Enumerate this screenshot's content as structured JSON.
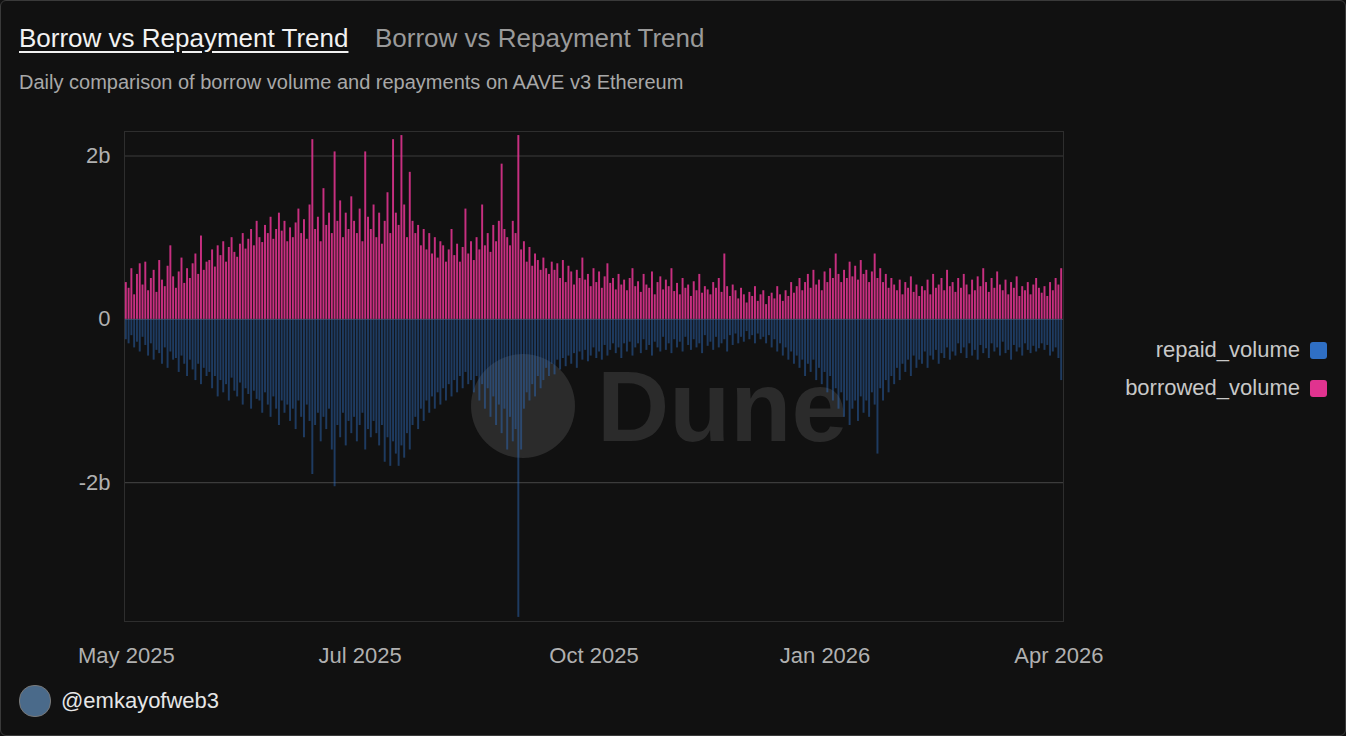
{
  "chart_data": {
    "type": "bar",
    "title": "Borrow vs Repayment Trend",
    "view_name": "Borrow vs Repayment Trend",
    "subtitle": "Daily comparison of borrow volume and repayments on AAVE v3 Ethereum",
    "caption": "@emkayofweb3",
    "watermark": "Dune",
    "legend": "right",
    "grid": true,
    "ylim": [
      -3.7,
      2.3
    ],
    "yticks": [
      {
        "value": 2,
        "label": "2b"
      },
      0,
      {
        "value": -2,
        "label": "-2b"
      }
    ],
    "categories": [
      "May 2025",
      null,
      null,
      null,
      null,
      null,
      null,
      null,
      null,
      null,
      null,
      null,
      null,
      null,
      null,
      null,
      null,
      null,
      null,
      null,
      null,
      null,
      null,
      null,
      null,
      null,
      null,
      null,
      null,
      null,
      null,
      null,
      null,
      null,
      null,
      null,
      null,
      null,
      null,
      null,
      null,
      null,
      null,
      null,
      null,
      null,
      null,
      null,
      null,
      null,
      null,
      null,
      null,
      null,
      null,
      null,
      null,
      null,
      null,
      null,
      null,
      null,
      null,
      null,
      null,
      null,
      null,
      null,
      null,
      null,
      null,
      null,
      null,
      null,
      null,
      null,
      null,
      null,
      null,
      null,
      null,
      null,
      null,
      null,
      "Jul 2025",
      null,
      null,
      null,
      null,
      null,
      null,
      null,
      null,
      null,
      null,
      null,
      null,
      null,
      null,
      null,
      null,
      null,
      null,
      null,
      null,
      null,
      null,
      null,
      null,
      null,
      null,
      null,
      null,
      null,
      null,
      null,
      null,
      null,
      null,
      null,
      null,
      null,
      null,
      null,
      null,
      null,
      null,
      null,
      null,
      null,
      null,
      null,
      null,
      null,
      null,
      null,
      null,
      null,
      null,
      null,
      null,
      null,
      null,
      null,
      null,
      null,
      null,
      null,
      null,
      null,
      null,
      null,
      null,
      null,
      null,
      null,
      null,
      null,
      null,
      null,
      null,
      null,
      null,
      null,
      null,
      null,
      null,
      null,
      "Oct 2025",
      null,
      null,
      null,
      null,
      null,
      null,
      null,
      null,
      null,
      null,
      null,
      null,
      null,
      null,
      null,
      null,
      null,
      null,
      null,
      null,
      null,
      null,
      null,
      null,
      null,
      null,
      null,
      null,
      null,
      null,
      null,
      null,
      null,
      null,
      null,
      null,
      null,
      null,
      null,
      null,
      null,
      null,
      null,
      null,
      null,
      null,
      null,
      null,
      null,
      null,
      null,
      null,
      null,
      null,
      null,
      null,
      null,
      null,
      null,
      null,
      null,
      null,
      null,
      null,
      null,
      null,
      null,
      null,
      null,
      null,
      null,
      null,
      null,
      null,
      null,
      null,
      null,
      null,
      null,
      null,
      null,
      null,
      "Jan 2026",
      null,
      null,
      null,
      null,
      null,
      null,
      null,
      null,
      null,
      null,
      null,
      null,
      null,
      null,
      null,
      null,
      null,
      null,
      null,
      null,
      null,
      null,
      null,
      null,
      null,
      null,
      null,
      null,
      null,
      null,
      null,
      null,
      null,
      null,
      null,
      null,
      null,
      null,
      null,
      null,
      null,
      null,
      null,
      null,
      null,
      null,
      null,
      null,
      null,
      null,
      null,
      null,
      null,
      null,
      null,
      null,
      null,
      null,
      null,
      null,
      null,
      null,
      null,
      null,
      null,
      null,
      null,
      null,
      null,
      null,
      null,
      null,
      null,
      null,
      null,
      null,
      null,
      null,
      null,
      null,
      null,
      null,
      null,
      "Apr 2026",
      null
    ],
    "series": [
      {
        "name": "repaid_volume",
        "color": "#2f6fc4",
        "values": [
          -0.25,
          -0.3,
          -0.2,
          -0.35,
          -0.28,
          -0.4,
          -0.22,
          -0.32,
          -0.45,
          -0.3,
          -0.5,
          -0.38,
          -0.42,
          -0.55,
          -0.35,
          -0.6,
          -0.4,
          -0.5,
          -0.48,
          -0.65,
          -0.45,
          -0.55,
          -0.7,
          -0.5,
          -0.62,
          -0.75,
          -0.55,
          -0.8,
          -0.6,
          -0.7,
          -0.65,
          -0.85,
          -0.7,
          -0.95,
          -0.75,
          -0.9,
          -0.8,
          -1.0,
          -0.72,
          -0.88,
          -0.95,
          -0.78,
          -1.05,
          -0.85,
          -0.92,
          -1.1,
          -0.88,
          -0.98,
          -1.0,
          -1.15,
          -0.9,
          -1.05,
          -1.2,
          -0.95,
          -1.1,
          -1.3,
          -1.0,
          -1.15,
          -1.05,
          -1.25,
          -1.1,
          -1.35,
          -1.0,
          -1.2,
          -1.45,
          -1.05,
          -1.25,
          -1.9,
          -1.3,
          -1.15,
          -1.5,
          -1.2,
          -1.35,
          -1.1,
          -1.6,
          -2.05,
          -1.3,
          -1.45,
          -1.15,
          -1.55,
          -1.25,
          -1.4,
          -1.2,
          -1.5,
          -1.3,
          -1.15,
          -1.6,
          -1.35,
          -1.45,
          -1.25,
          -1.4,
          -1.55,
          -1.3,
          -1.75,
          -1.45,
          -1.8,
          -1.5,
          -1.65,
          -1.8,
          -1.55,
          -1.7,
          -1.4,
          -1.6,
          -1.3,
          -1.2,
          -1.35,
          -1.1,
          -1.25,
          -1.0,
          -1.15,
          -0.95,
          -1.1,
          -0.9,
          -1.05,
          -0.85,
          -1.0,
          -0.8,
          -0.95,
          -0.75,
          -0.9,
          -0.7,
          -0.85,
          -0.65,
          -0.8,
          -0.75,
          -0.9,
          -0.7,
          -1.0,
          -0.8,
          -1.1,
          -0.85,
          -1.2,
          -0.95,
          -1.3,
          -1.05,
          -1.4,
          -1.1,
          -1.6,
          -1.2,
          -1.5,
          -1.35,
          -3.65,
          -1.6,
          -1.1,
          -0.9,
          -1.0,
          -0.8,
          -0.95,
          -0.7,
          -0.85,
          -0.75,
          -0.6,
          -0.7,
          -0.55,
          -0.68,
          -0.5,
          -0.62,
          -0.48,
          -0.58,
          -0.45,
          -0.55,
          -0.42,
          -0.6,
          -0.4,
          -0.5,
          -0.38,
          -0.52,
          -0.45,
          -0.35,
          -0.48,
          -0.4,
          -0.5,
          -0.32,
          -0.45,
          -0.38,
          -0.3,
          -0.42,
          -0.35,
          -0.48,
          -0.3,
          -0.4,
          -0.28,
          -0.45,
          -0.35,
          -0.3,
          -0.42,
          -0.25,
          -0.38,
          -0.32,
          -0.45,
          -0.28,
          -0.35,
          -0.4,
          -0.22,
          -0.38,
          -0.3,
          -0.42,
          -0.25,
          -0.35,
          -0.28,
          -0.4,
          -0.22,
          -0.32,
          -0.38,
          -0.25,
          -0.35,
          -0.3,
          -0.42,
          -0.2,
          -0.33,
          -0.28,
          -0.38,
          -0.22,
          -0.35,
          -0.3,
          -0.25,
          -0.4,
          -0.2,
          -0.32,
          -0.18,
          -0.3,
          -0.22,
          -0.28,
          -0.15,
          -0.25,
          -0.2,
          -0.3,
          -0.18,
          -0.25,
          -0.22,
          -0.3,
          -0.2,
          -0.35,
          -0.25,
          -0.4,
          -0.3,
          -0.45,
          -0.35,
          -0.5,
          -0.4,
          -0.55,
          -0.45,
          -0.6,
          -0.5,
          -0.7,
          -0.55,
          -0.65,
          -0.5,
          -0.75,
          -0.6,
          -0.8,
          -0.65,
          -0.9,
          -0.7,
          -1.0,
          -0.85,
          -1.1,
          -0.9,
          -1.2,
          -1.0,
          -1.3,
          -1.1,
          -1.0,
          -1.25,
          -0.95,
          -1.15,
          -1.0,
          -1.2,
          -0.9,
          -1.05,
          -1.65,
          -0.85,
          -1.0,
          -0.75,
          -0.9,
          -0.7,
          -0.8,
          -0.6,
          -0.75,
          -0.55,
          -0.65,
          -0.5,
          -0.7,
          -0.45,
          -0.6,
          -0.5,
          -0.55,
          -0.4,
          -0.6,
          -0.45,
          -0.5,
          -0.38,
          -0.55,
          -0.42,
          -0.48,
          -0.35,
          -0.5,
          -0.4,
          -0.45,
          -0.3,
          -0.42,
          -0.35,
          -0.48,
          -0.3,
          -0.45,
          -0.38,
          -0.5,
          -0.32,
          -0.42,
          -0.36,
          -0.48,
          -0.3,
          -0.4,
          -0.35,
          -0.45,
          -0.28,
          -0.42,
          -0.38,
          -0.5,
          -0.32,
          -0.4,
          -0.35,
          -0.45,
          -0.3,
          -0.38,
          -0.42,
          -0.33,
          -0.4,
          -0.36,
          -0.3,
          -0.38,
          -0.32,
          -0.45,
          -0.4,
          -0.35,
          -0.48,
          -0.75
        ]
      },
      {
        "name": "borrowed_volume",
        "color": "#e0338f",
        "values": [
          0.45,
          0.38,
          0.62,
          0.3,
          0.55,
          0.68,
          0.42,
          0.7,
          0.35,
          0.5,
          0.6,
          0.33,
          0.72,
          0.48,
          0.4,
          0.65,
          0.9,
          0.52,
          0.38,
          0.58,
          0.75,
          0.44,
          0.62,
          0.5,
          0.68,
          0.8,
          0.55,
          1.02,
          0.6,
          0.7,
          0.72,
          0.85,
          0.64,
          0.9,
          0.78,
          0.95,
          0.7,
          0.88,
          1.0,
          0.82,
          0.76,
          0.92,
          1.05,
          0.86,
          0.98,
          1.1,
          0.9,
          1.2,
          1.0,
          0.94,
          1.15,
          1.05,
          1.25,
          0.98,
          1.1,
          1.3,
          1.08,
          1.2,
          0.95,
          1.12,
          1.0,
          1.18,
          1.35,
          1.05,
          1.22,
          0.98,
          1.4,
          2.2,
          1.1,
          1.25,
          0.95,
          1.6,
          1.15,
          1.3,
          1.05,
          2.05,
          1.2,
          1.45,
          1.0,
          1.3,
          1.1,
          1.5,
          1.2,
          1.05,
          1.35,
          0.95,
          2.05,
          1.25,
          1.1,
          1.4,
          1.0,
          1.3,
          0.92,
          1.2,
          1.55,
          1.05,
          2.2,
          1.3,
          1.15,
          2.25,
          1.4,
          1.0,
          1.8,
          1.2,
          1.05,
          1.15,
          0.9,
          1.1,
          0.85,
          1.05,
          0.8,
          1.0,
          0.75,
          0.95,
          0.9,
          0.7,
          0.85,
          1.1,
          0.78,
          0.92,
          0.7,
          0.88,
          1.35,
          0.8,
          0.95,
          0.72,
          1.0,
          0.85,
          1.4,
          0.9,
          1.05,
          0.82,
          1.15,
          0.95,
          1.2,
          1.9,
          1.1,
          1.0,
          0.9,
          1.2,
          1.05,
          2.25,
          0.85,
          0.95,
          0.7,
          0.88,
          0.65,
          0.8,
          0.72,
          0.6,
          0.75,
          0.62,
          0.55,
          0.7,
          0.6,
          0.68,
          0.5,
          0.72,
          0.45,
          0.65,
          0.58,
          0.42,
          0.6,
          0.5,
          0.75,
          0.48,
          0.55,
          0.4,
          0.62,
          0.45,
          0.58,
          0.38,
          0.52,
          0.68,
          0.44,
          0.5,
          0.36,
          0.55,
          0.42,
          0.48,
          0.35,
          0.5,
          0.62,
          0.4,
          0.46,
          0.33,
          0.55,
          0.42,
          0.38,
          0.58,
          0.3,
          0.45,
          0.52,
          0.36,
          0.48,
          0.4,
          0.62,
          0.34,
          0.44,
          0.3,
          0.5,
          0.38,
          0.42,
          0.28,
          0.46,
          0.35,
          0.55,
          0.32,
          0.4,
          0.36,
          0.3,
          0.45,
          0.38,
          0.5,
          0.33,
          0.8,
          0.4,
          0.28,
          0.42,
          0.35,
          0.25,
          0.38,
          0.3,
          0.2,
          0.33,
          0.28,
          0.4,
          0.22,
          0.3,
          0.35,
          0.18,
          0.28,
          0.32,
          0.25,
          0.4,
          0.3,
          0.22,
          0.35,
          0.28,
          0.45,
          0.32,
          0.4,
          0.5,
          0.35,
          0.45,
          0.55,
          0.38,
          0.6,
          0.42,
          0.48,
          0.35,
          0.58,
          0.45,
          0.62,
          0.5,
          0.8,
          0.55,
          0.45,
          0.6,
          0.5,
          0.7,
          0.52,
          0.65,
          0.48,
          0.72,
          0.55,
          0.6,
          0.45,
          0.58,
          0.8,
          0.5,
          0.62,
          0.45,
          0.55,
          0.38,
          0.5,
          0.42,
          0.35,
          0.48,
          0.3,
          0.45,
          0.38,
          0.52,
          0.33,
          0.42,
          0.28,
          0.4,
          0.35,
          0.48,
          0.3,
          0.55,
          0.38,
          0.42,
          0.5,
          0.35,
          0.6,
          0.4,
          0.45,
          0.33,
          0.5,
          0.38,
          0.55,
          0.42,
          0.3,
          0.48,
          0.35,
          0.52,
          0.4,
          0.62,
          0.45,
          0.33,
          0.5,
          0.38,
          0.58,
          0.42,
          0.35,
          0.48,
          0.3,
          0.45,
          0.38,
          0.52,
          0.28,
          0.4,
          0.35,
          0.45,
          0.3,
          0.42,
          0.5,
          0.38,
          0.32,
          0.4,
          0.28,
          0.45,
          0.35,
          0.5,
          0.42,
          0.62
        ]
      }
    ]
  }
}
